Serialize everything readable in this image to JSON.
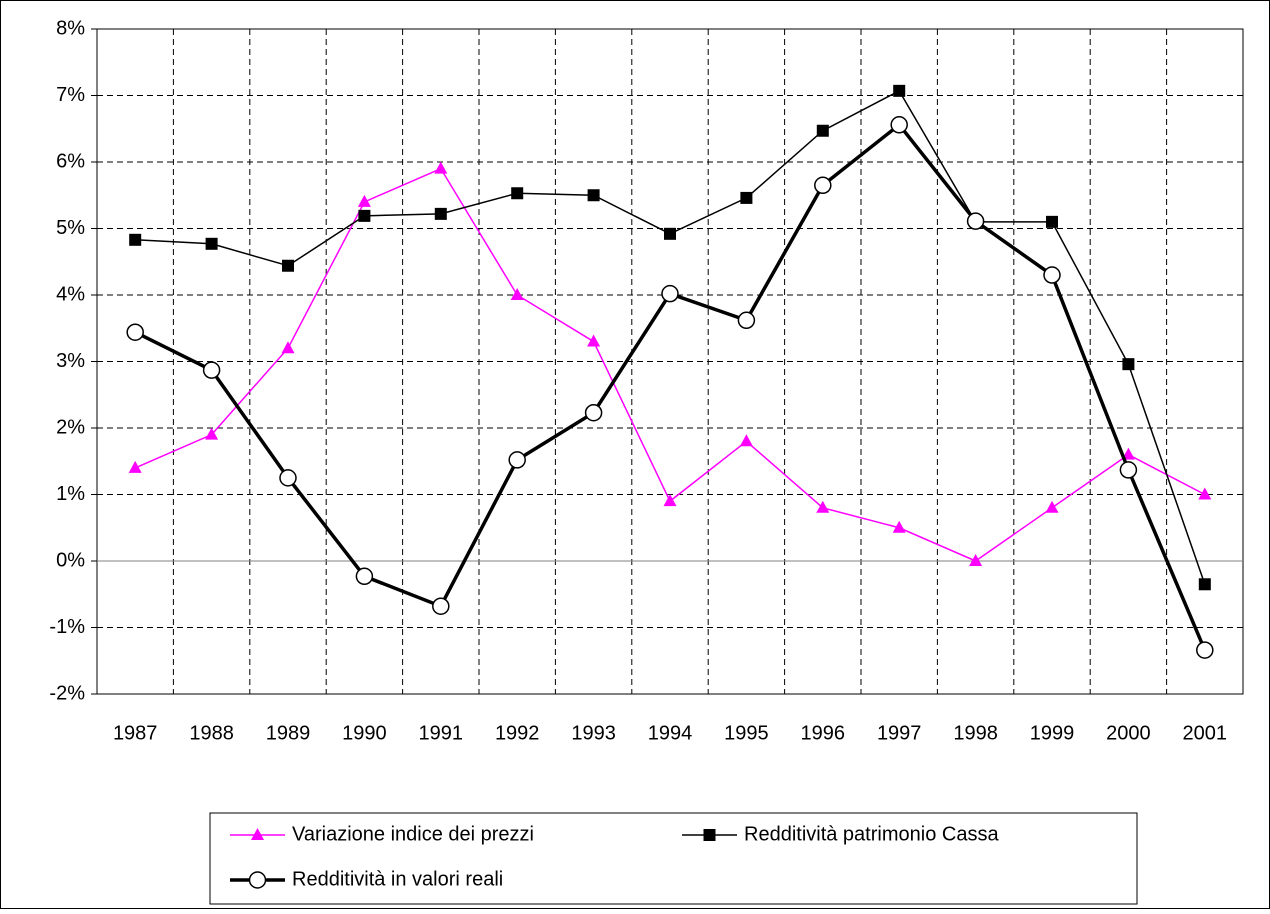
{
  "chart_data": {
    "type": "line",
    "categories": [
      "1987",
      "1988",
      "1989",
      "1990",
      "1991",
      "1992",
      "1993",
      "1994",
      "1995",
      "1996",
      "1997",
      "1998",
      "1999",
      "2000",
      "2001"
    ],
    "series": [
      {
        "name": "Variazione indice dei prezzi",
        "color": "#ff00ff",
        "marker": "triangle",
        "line_width": 1.5,
        "values": [
          1.4,
          1.9,
          3.2,
          5.4,
          5.9,
          4.0,
          3.3,
          0.9,
          1.8,
          0.8,
          0.5,
          0.0,
          0.8,
          1.6,
          1.0
        ]
      },
      {
        "name": "Redditività patrimonio Cassa",
        "color": "#000000",
        "marker": "square",
        "line_width": 1.5,
        "values": [
          4.83,
          4.77,
          4.44,
          5.19,
          5.22,
          5.53,
          5.5,
          4.92,
          5.46,
          6.47,
          7.07,
          5.1,
          5.1,
          2.96,
          -0.35
        ]
      },
      {
        "name": "Redditività in valori reali",
        "color": "#000000",
        "marker": "circle",
        "line_width": 3.5,
        "values": [
          3.44,
          2.87,
          1.25,
          -0.23,
          -0.68,
          1.52,
          2.23,
          4.02,
          3.62,
          5.65,
          6.56,
          5.11,
          4.3,
          1.37,
          -1.34
        ]
      }
    ],
    "ylim": [
      -2,
      8
    ],
    "yticks": [
      {
        "value": -2,
        "label": "-2%"
      },
      {
        "value": -1,
        "label": "-1%"
      },
      {
        "value": 0,
        "label": "0%"
      },
      {
        "value": 1,
        "label": "1%"
      },
      {
        "value": 2,
        "label": "2%"
      },
      {
        "value": 3,
        "label": "3%"
      },
      {
        "value": 4,
        "label": "4%"
      },
      {
        "value": 5,
        "label": "5%"
      },
      {
        "value": 6,
        "label": "6%"
      },
      {
        "value": 7,
        "label": "7%"
      },
      {
        "value": 8,
        "label": "8%"
      }
    ],
    "grid": true,
    "legend": "bottom"
  }
}
